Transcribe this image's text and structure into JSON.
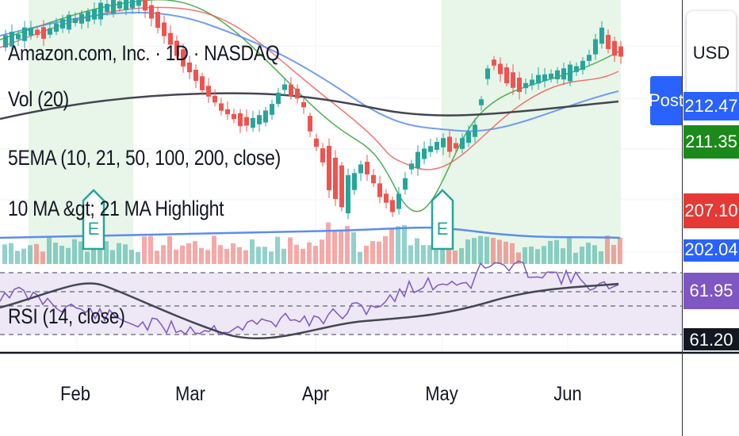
{
  "chart_data": {
    "type": "candlestick",
    "title": "Amazon.com, Inc. · 1D · NASDAQ",
    "indicators": [
      "Vol (20)",
      "5EMA (10, 21, 50, 100, 200, close)",
      "10 MA &gt; 21 MA Highlight"
    ],
    "rsi_label": "RSI (14, close)",
    "currency": "USD",
    "x_ticks": [
      "Feb",
      "Mar",
      "Apr",
      "May",
      "Jun"
    ],
    "post_label": "Post",
    "price_labels": {
      "blue_top": "212.47",
      "green": "211.35",
      "red": "207.10",
      "blue_bottom": "202.04",
      "rsi": "61.95",
      "rsi_ma": "61.20"
    },
    "earnings_marker": "E",
    "colors": {
      "up": "#26a69a",
      "down": "#ef5350",
      "highlight": "#e8f5e9",
      "ema10": "#4caf50",
      "ema21": "#ef5350",
      "ema50": "#5b8def",
      "ema200": "#434651",
      "rsi": "#7e57c2",
      "rsi_band": "#ede7f6",
      "post": "#2962ff",
      "price_green": "#008000",
      "price_red": "#e53935"
    }
  }
}
